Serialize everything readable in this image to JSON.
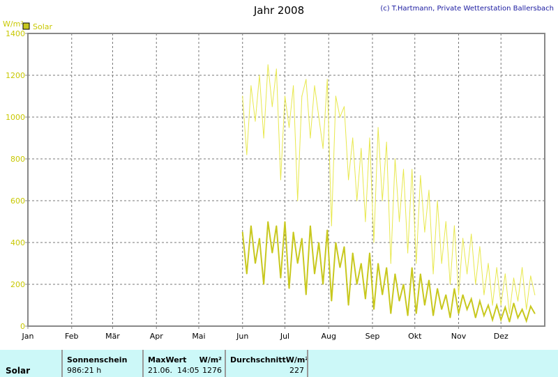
{
  "chart_data": {
    "type": "line",
    "title": "Jahr 2008",
    "credit": "(c) T.Hartmann, Private Wetterstation Ballersbach",
    "ylabel": "W/m²",
    "legend": [
      "Solar"
    ],
    "legend_position": "top-left",
    "ylim": [
      0,
      1400
    ],
    "yticks": [
      "0",
      "200",
      "400",
      "600",
      "800",
      "1000",
      "1200",
      "1400"
    ],
    "xticks": [
      "Jan",
      "Feb",
      "Mär",
      "Apr",
      "Mai",
      "Jun",
      "Jul",
      "Aug",
      "Sep",
      "Okt",
      "Nov",
      "Dez"
    ],
    "x_start_day": 152,
    "x_step_days": 3,
    "grid": true,
    "series": [
      {
        "color": "#e8e84c",
        "values": [
          1100,
          820,
          1150,
          980,
          1200,
          900,
          1250,
          1050,
          1230,
          700,
          1100,
          950,
          1150,
          600,
          1100,
          1180,
          900,
          1150,
          1000,
          850,
          1180,
          480,
          1100,
          1000,
          1050,
          700,
          900,
          600,
          850,
          500,
          900,
          400,
          950,
          600,
          880,
          300,
          800,
          500,
          750,
          350,
          750,
          300,
          720,
          450,
          650,
          250,
          600,
          300,
          500,
          200,
          480,
          150,
          420,
          250,
          440,
          200,
          380,
          150,
          300,
          100,
          280,
          100,
          250,
          60,
          230,
          120,
          280,
          80,
          240,
          150
        ]
      },
      {
        "color": "#c8c81e",
        "values": [
          450,
          250,
          480,
          300,
          420,
          200,
          500,
          350,
          480,
          230,
          500,
          180,
          450,
          300,
          420,
          150,
          480,
          250,
          400,
          200,
          460,
          120,
          400,
          280,
          380,
          100,
          350,
          200,
          300,
          130,
          350,
          80,
          300,
          150,
          280,
          60,
          250,
          120,
          200,
          50,
          280,
          60,
          250,
          100,
          220,
          50,
          180,
          80,
          150,
          40,
          180,
          60,
          150,
          80,
          130,
          40,
          120,
          50,
          100,
          30,
          100,
          30,
          90,
          20,
          110,
          40,
          80,
          25,
          95,
          60
        ]
      }
    ]
  },
  "table": {
    "row_label": "Solar",
    "sunshine_header": "Sonnenschein",
    "sunshine_value": "986:21 h",
    "max_header": "MaxWert",
    "max_unit": "W/m²",
    "max_date": "21.06.  14:05",
    "max_value": "1276",
    "avg_header": "DurchschnittW/m²",
    "avg_value": "227"
  }
}
